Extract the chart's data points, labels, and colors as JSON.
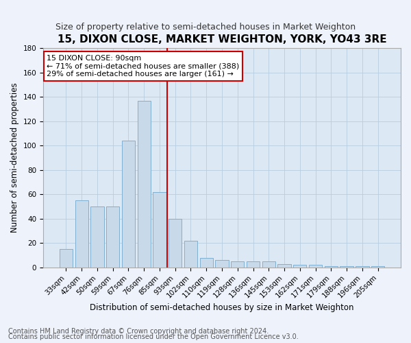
{
  "title": "15, DIXON CLOSE, MARKET WEIGHTON, YORK, YO43 3RE",
  "subtitle": "Size of property relative to semi-detached houses in Market Weighton",
  "xlabel": "Distribution of semi-detached houses by size in Market Weighton",
  "ylabel": "Number of semi-detached properties",
  "categories": [
    "33sqm",
    "42sqm",
    "50sqm",
    "59sqm",
    "67sqm",
    "76sqm",
    "85sqm",
    "93sqm",
    "102sqm",
    "110sqm",
    "119sqm",
    "128sqm",
    "136sqm",
    "145sqm",
    "153sqm",
    "162sqm",
    "171sqm",
    "179sqm",
    "188sqm",
    "196sqm",
    "205sqm"
  ],
  "values": [
    15,
    55,
    50,
    50,
    104,
    137,
    62,
    40,
    22,
    8,
    6,
    5,
    5,
    5,
    3,
    2,
    2,
    1,
    1,
    1,
    1
  ],
  "bar_color": "#c8d9ea",
  "bar_edge_color": "#7fafd0",
  "vline_index": 7,
  "vline_color": "#cc0000",
  "annotation_title": "15 DIXON CLOSE: 90sqm",
  "annotation_line1": "← 71% of semi-detached houses are smaller (388)",
  "annotation_line2": "29% of semi-detached houses are larger (161) →",
  "annotation_box_color": "#ffffff",
  "annotation_box_edge": "#cc0000",
  "ylim": [
    0,
    180
  ],
  "yticks": [
    0,
    20,
    40,
    60,
    80,
    100,
    120,
    140,
    160,
    180
  ],
  "footer1": "Contains HM Land Registry data © Crown copyright and database right 2024.",
  "footer2": "Contains public sector information licensed under the Open Government Licence v3.0.",
  "bg_color": "#eef2fb",
  "plot_bg_color": "#dde8f5",
  "grid_color": "#b8cde0",
  "title_fontsize": 11,
  "subtitle_fontsize": 9,
  "tick_fontsize": 7.5,
  "label_fontsize": 8.5,
  "annotation_fontsize": 8,
  "footer_fontsize": 7
}
